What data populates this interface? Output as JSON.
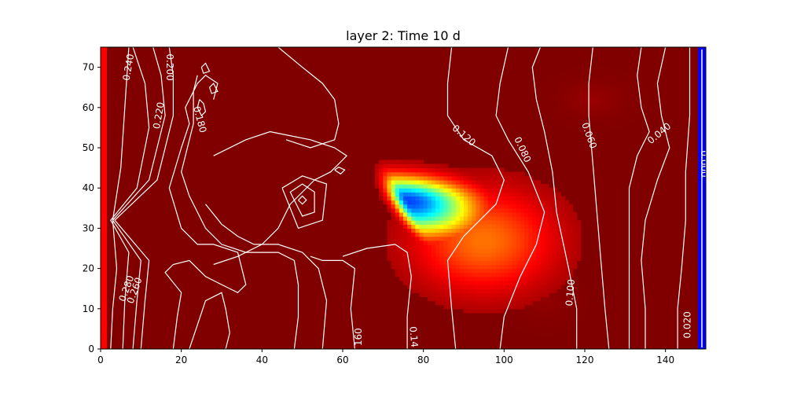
{
  "chart_data": {
    "type": "heatmap",
    "title": "layer 2: Time 10 d",
    "xlim": [
      0,
      150
    ],
    "ylim": [
      0,
      75
    ],
    "x_ticks": [
      0,
      20,
      40,
      60,
      80,
      100,
      120,
      140
    ],
    "y_ticks": [
      0,
      10,
      20,
      30,
      40,
      50,
      60,
      70
    ],
    "x_tick_labels": [
      "0",
      "20",
      "40",
      "60",
      "80",
      "100",
      "120",
      "140"
    ],
    "y_tick_labels": [
      "0",
      "10",
      "20",
      "30",
      "40",
      "50",
      "60",
      "70"
    ],
    "colormap": "jet",
    "background_color": "#800000",
    "left_boundary_color": "#ff0000",
    "right_boundary_color": "#0000ff",
    "contour_color": "#ffffff",
    "plume": {
      "core": [
        76,
        37
      ],
      "description_values": "concentration heat-map cells"
    },
    "contour_labels": [
      {
        "text": "0.240",
        "x": 7,
        "y": 70,
        "angle": -80
      },
      {
        "text": "0.200",
        "x": 17,
        "y": 70,
        "angle": 90
      },
      {
        "text": "0.220",
        "x": 14.5,
        "y": 58,
        "angle": -80
      },
      {
        "text": "0.180",
        "x": 24.5,
        "y": 57,
        "angle": 75
      },
      {
        "text": "0.120",
        "x": 90,
        "y": 53,
        "angle": 40
      },
      {
        "text": "0.080",
        "x": 104.5,
        "y": 49.5,
        "angle": 65
      },
      {
        "text": "0.060",
        "x": 121,
        "y": 53,
        "angle": 70
      },
      {
        "text": "0.040",
        "x": 138.5,
        "y": 53.5,
        "angle": -40
      },
      {
        "text": "0.000",
        "x": 149.5,
        "y": 46,
        "angle": 90
      },
      {
        "text": "0.280",
        "x": 6.5,
        "y": 15,
        "angle": -70
      },
      {
        "text": "0.260",
        "x": 8.5,
        "y": 14.5,
        "angle": -70
      },
      {
        "text": "0.100",
        "x": 116.5,
        "y": 14,
        "angle": -85
      },
      {
        "text": "0.020",
        "x": 145.5,
        "y": 6,
        "angle": -90
      },
      {
        "text": "160",
        "x": 64,
        "y": 3,
        "angle": -90
      },
      {
        "text": "0.14",
        "x": 77.5,
        "y": 3,
        "angle": 85
      }
    ]
  }
}
